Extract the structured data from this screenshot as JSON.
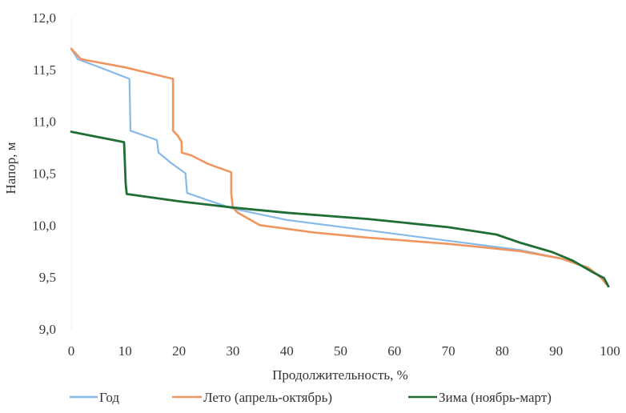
{
  "chart_data": {
    "type": "line",
    "title": "",
    "xlabel": "Продолжительность, %",
    "ylabel": "Напор, м",
    "xlim": [
      0,
      100
    ],
    "ylim": [
      9.0,
      12.0
    ],
    "grid": false,
    "legend_position": "bottom",
    "x_ticks": [
      "0",
      "10",
      "20",
      "30",
      "40",
      "50",
      "60",
      "70",
      "80",
      "90",
      "100"
    ],
    "x_tick_values": [
      0,
      10,
      20,
      30,
      40,
      50,
      60,
      70,
      80,
      90,
      100
    ],
    "y_ticks": [
      "9,0",
      "9,5",
      "10,0",
      "10,5",
      "11,0",
      "11,5",
      "12,0"
    ],
    "y_tick_values": [
      9.0,
      9.5,
      10.0,
      10.5,
      11.0,
      11.5,
      12.0
    ],
    "series": [
      {
        "name": "Год",
        "color": "#86baea",
        "x": [
          0,
          1.2,
          5.3,
          10.8,
          11.0,
          15.9,
          16.2,
          18.5,
          21.2,
          21.5,
          25.4,
          30,
          40,
          55.1,
          70,
          83.4,
          90.8,
          96.0,
          98.2,
          99.7
        ],
        "y": [
          11.7,
          11.6,
          11.52,
          11.41,
          10.91,
          10.82,
          10.7,
          10.6,
          10.5,
          10.31,
          10.24,
          10.16,
          10.05,
          9.95,
          9.85,
          9.76,
          9.68,
          9.59,
          9.5,
          9.41
        ]
      },
      {
        "name": "Лето (апрель-октябрь)",
        "color": "#f0955f",
        "x": [
          0,
          1.8,
          10,
          18.9,
          18.9,
          19.8,
          20.5,
          20.5,
          22.4,
          25.4,
          29.7,
          29.7,
          30.0,
          30.9,
          35.0,
          45,
          55.1,
          70,
          83.4,
          90.8,
          96.0,
          98.2,
          99.7
        ],
        "y": [
          11.7,
          11.6,
          11.52,
          11.41,
          10.91,
          10.86,
          10.8,
          10.7,
          10.67,
          10.59,
          10.51,
          10.3,
          10.17,
          10.12,
          10.0,
          9.93,
          9.88,
          9.82,
          9.75,
          9.68,
          9.59,
          9.5,
          9.41
        ]
      },
      {
        "name": "Зима (ноябрь-март)",
        "color": "#1f6e35",
        "x": [
          0,
          9.8,
          10.1,
          10.3,
          20,
          30,
          40,
          55.1,
          70,
          78.9,
          83.4,
          89.3,
          93.0,
          96.7,
          98.9,
          99.7
        ],
        "y": [
          10.9,
          10.8,
          10.4,
          10.3,
          10.23,
          10.17,
          10.12,
          10.06,
          9.98,
          9.91,
          9.83,
          9.74,
          9.66,
          9.55,
          9.49,
          9.41
        ]
      }
    ]
  }
}
